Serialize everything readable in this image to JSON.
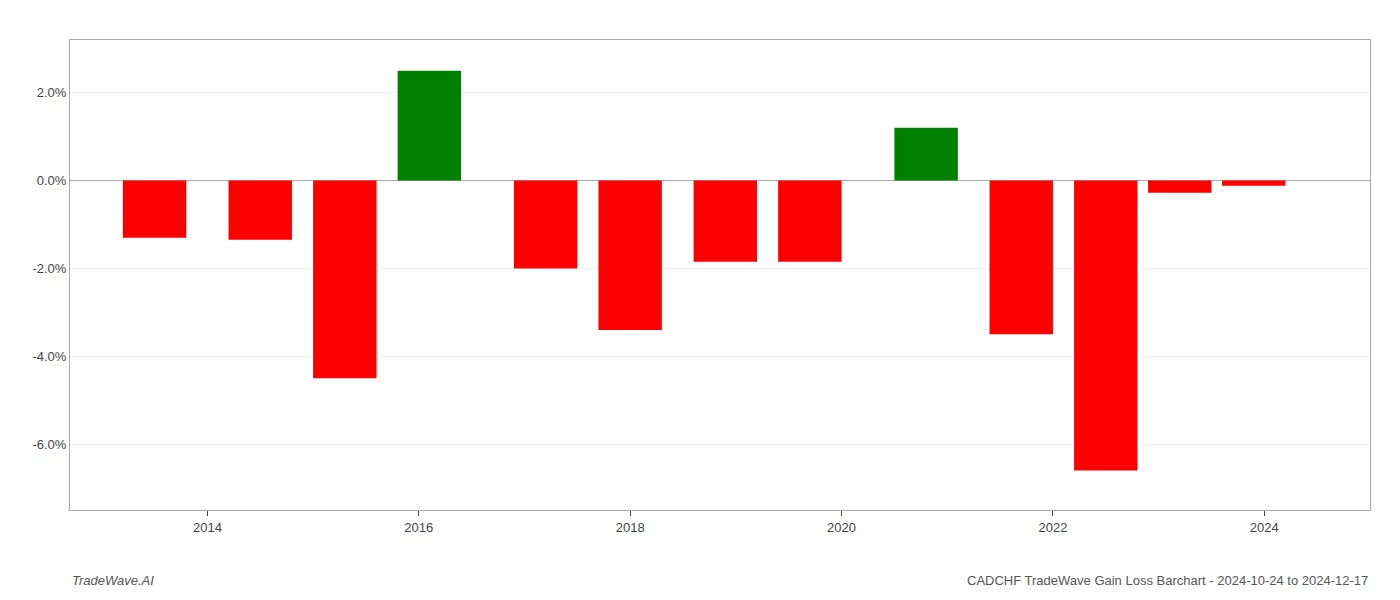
{
  "chart_data": {
    "type": "bar",
    "x": [
      2013.5,
      2014.5,
      2015.3,
      2016.1,
      2017.2,
      2018.0,
      2018.9,
      2019.7,
      2020.8,
      2021.7,
      2022.5,
      2023.2,
      2023.9
    ],
    "values": [
      -1.3,
      -1.35,
      -4.5,
      2.5,
      -2.0,
      -3.4,
      -1.85,
      -1.85,
      1.2,
      -3.5,
      -6.6,
      -0.28,
      -0.12
    ],
    "colors": [
      "#ff0000",
      "#ff0000",
      "#ff0000",
      "#008000",
      "#ff0000",
      "#ff0000",
      "#ff0000",
      "#ff0000",
      "#008000",
      "#ff0000",
      "#ff0000",
      "#ff0000",
      "#ff0000"
    ],
    "xlim": [
      2012.7,
      2025.0
    ],
    "xticks": [
      2014,
      2016,
      2018,
      2020,
      2022,
      2024
    ],
    "ylim": [
      -7.5,
      3.2
    ],
    "yticks": [
      {
        "value": -6.0,
        "label": "-6.0%"
      },
      {
        "value": -4.0,
        "label": "-4.0%"
      },
      {
        "value": -2.0,
        "label": "-2.0%"
      },
      {
        "value": 0.0,
        "label": "0.0%"
      },
      {
        "value": 2.0,
        "label": "2.0%"
      }
    ],
    "grid": true,
    "annotations": [
      "TradeWave.AI",
      "CADCHF TradeWave Gain Loss Barchart - 2024-10-24 to 2024-12-17"
    ]
  }
}
